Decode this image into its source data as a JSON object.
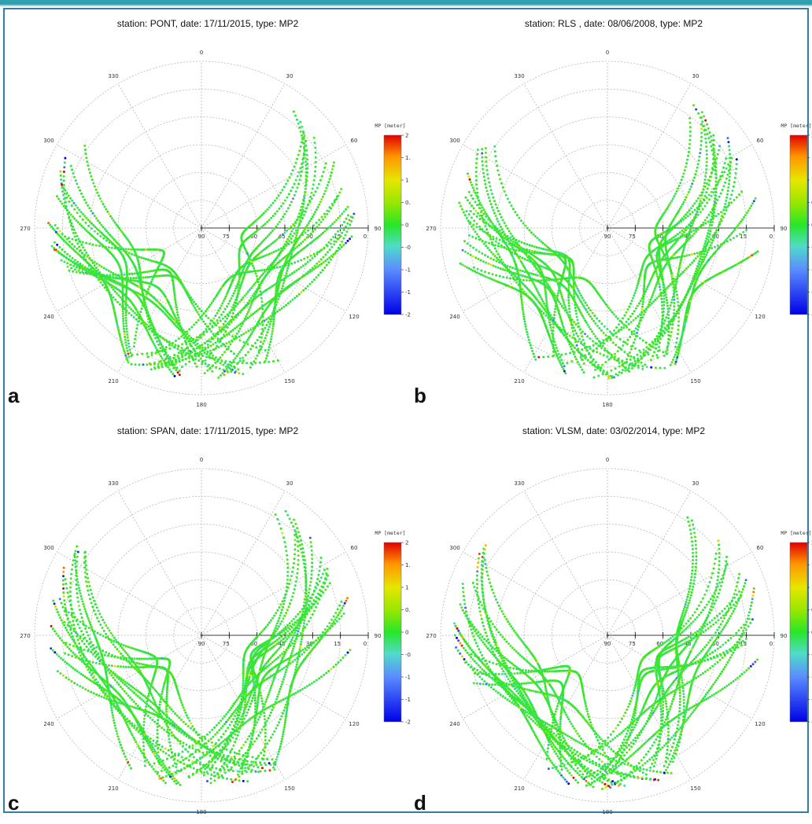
{
  "chart_data": [
    {
      "type": "scatter",
      "panel_label": "a",
      "title": "station: PONT, date: 17/11/2015, type: MP2",
      "colorbar_label": "MP [meter]",
      "colorbar_ticks": [
        "2",
        "1.5",
        "1",
        "0.5",
        "0",
        "-0.5",
        "-1",
        "-1.5",
        "-2"
      ],
      "colorbar_range": [
        -2,
        2
      ],
      "azimuth_labels": [
        "0",
        "30",
        "60",
        "90",
        "120",
        "150",
        "180",
        "210",
        "240",
        "270",
        "300",
        "330"
      ],
      "elevation_labels": [
        "90",
        "75",
        "60",
        "45",
        "30",
        "15",
        "0"
      ],
      "seed": 11
    },
    {
      "type": "scatter",
      "panel_label": "b",
      "title": "station: RLS , date: 08/06/2008, type: MP2",
      "colorbar_label": "MP [meter]",
      "colorbar_ticks": [
        "2",
        "1.5",
        "1",
        "0.5",
        "0",
        "-0.5",
        "-1",
        "-1.5",
        "-2"
      ],
      "colorbar_range": [
        -2,
        2
      ],
      "azimuth_labels": [
        "0",
        "30",
        "60",
        "90",
        "120",
        "150",
        "180",
        "210",
        "240",
        "270",
        "300",
        "330"
      ],
      "elevation_labels": [
        "90",
        "75",
        "60",
        "45",
        "30",
        "15",
        "0"
      ],
      "seed": 23
    },
    {
      "type": "scatter",
      "panel_label": "c",
      "title": "station: SPAN, date: 17/11/2015, type: MP2",
      "colorbar_label": "MP [meter]",
      "colorbar_ticks": [
        "2",
        "1.5",
        "1",
        "0.5",
        "0",
        "-0.5",
        "-1",
        "-1.5",
        "-2"
      ],
      "colorbar_range": [
        -2,
        2
      ],
      "azimuth_labels": [
        "0",
        "30",
        "60",
        "90",
        "120",
        "150",
        "180",
        "210",
        "240",
        "270",
        "300",
        "330"
      ],
      "elevation_labels": [
        "90",
        "75",
        "60",
        "45",
        "30",
        "15",
        "0"
      ],
      "seed": 37
    },
    {
      "type": "scatter",
      "panel_label": "d",
      "title": "station: VLSM, date: 03/02/2014, type: MP2",
      "colorbar_label": "MP [meter]",
      "colorbar_ticks": [
        "2",
        "1.5",
        "1",
        "0.5",
        "0",
        "-0.5",
        "-1",
        "-1.5",
        "-2"
      ],
      "colorbar_range": [
        -2,
        2
      ],
      "azimuth_labels": [
        "0",
        "30",
        "60",
        "90",
        "120",
        "150",
        "180",
        "210",
        "240",
        "270",
        "300",
        "330"
      ],
      "elevation_labels": [
        "90",
        "75",
        "60",
        "45",
        "30",
        "15",
        "0"
      ],
      "seed": 53
    }
  ]
}
